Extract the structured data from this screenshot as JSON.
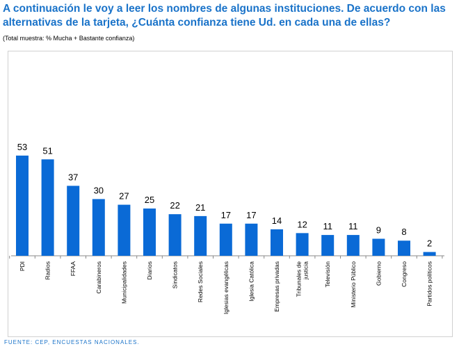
{
  "title": "A continuación le voy a leer los nombres de algunas instituciones. De acuerdo con las alternativas de la tarjeta, ¿Cuánta confianza tiene Ud. en cada una de ellas?",
  "subtitle": "(Total muestra: % Mucha + Bastante confianza)",
  "footer": "FUENTE: CEP, ENCUESTAS NACIONALES.",
  "colors": {
    "bar": "#0a6ad6",
    "title": "#1a73c9"
  },
  "chart_data": {
    "type": "bar",
    "categories": [
      [
        "PDI"
      ],
      [
        "Radios"
      ],
      [
        "FFAA"
      ],
      [
        "Carabineros"
      ],
      [
        "Municipalidades"
      ],
      [
        "Diarios"
      ],
      [
        "Sindicatos"
      ],
      [
        "Redes Sociales"
      ],
      [
        "Iglesias evangélicas"
      ],
      [
        "Iglesia Católica"
      ],
      [
        "Empresas privadas"
      ],
      [
        "Tribunales de",
        "justicia"
      ],
      [
        "Televisión"
      ],
      [
        "Ministerio Público"
      ],
      [
        "Gobierno"
      ],
      [
        "Congreso"
      ],
      [
        "Partidos políticos"
      ]
    ],
    "values": [
      53,
      51,
      37,
      30,
      27,
      25,
      22,
      21,
      17,
      17,
      14,
      12,
      11,
      11,
      9,
      8,
      2
    ],
    "title": "",
    "xlabel": "",
    "ylabel": "",
    "ylim": [
      0,
      60
    ],
    "grid": false,
    "legend": "none"
  }
}
